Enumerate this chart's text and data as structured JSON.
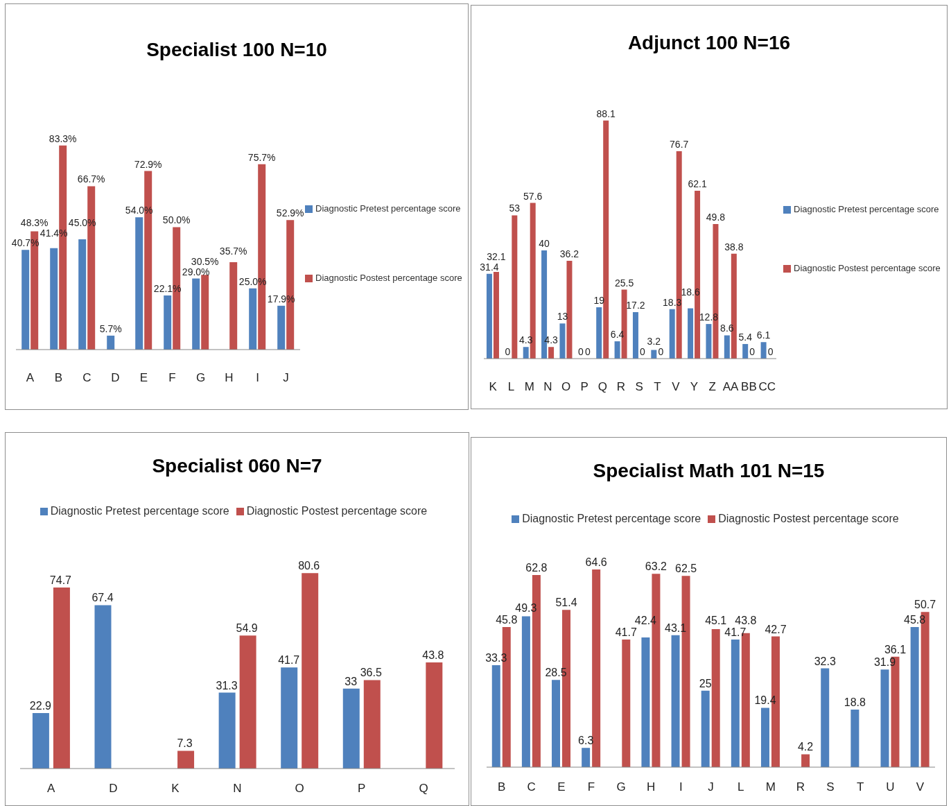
{
  "chart_data": [
    {
      "type": "bar",
      "title": "Specialist 100 N=10",
      "categories": [
        "A",
        "B",
        "C",
        "D",
        "E",
        "F",
        "G",
        "H",
        "I",
        "J"
      ],
      "series": [
        {
          "name": "Diagnostic Pretest percentage score",
          "color": "#4f81bd",
          "values": [
            40.7,
            41.4,
            45,
            5.7,
            54,
            22.1,
            29,
            null,
            25,
            17.9
          ],
          "value_labels": [
            "40.7%",
            "41.4%",
            "45.0%",
            "5.7%",
            "54.0%",
            "22.1%",
            "29.0%",
            null,
            "25.0%",
            "17.9%"
          ]
        },
        {
          "name": "Diagnostic Postest percentage score",
          "color": "#c0504d",
          "values": [
            48.3,
            83.3,
            66.7,
            null,
            72.9,
            50,
            30.5,
            35.7,
            75.7,
            52.9
          ],
          "value_labels": [
            "48.3%",
            "83.3%",
            "66.7%",
            null,
            "72.9%",
            "50.0%",
            "30.5%",
            "35.7%",
            "75.7%",
            "52.9%"
          ]
        }
      ],
      "legend": "right"
    },
    {
      "type": "bar",
      "title": "Adjunct 100 N=16",
      "categories": [
        "K",
        "L",
        "M",
        "N",
        "O",
        "P",
        "Q",
        "R",
        "S",
        "T",
        "V",
        "Y",
        "Z",
        "AA",
        "BB",
        "CC"
      ],
      "series": [
        {
          "name": "Diagnostic Pretest percentage score",
          "color": "#4f81bd",
          "values": [
            31.4,
            0,
            4.3,
            40,
            13,
            0,
            19,
            6.4,
            17.2,
            3.2,
            18.3,
            18.6,
            12.8,
            8.6,
            5.4,
            6.1
          ]
        },
        {
          "name": "Diagnostic Postest percentage score",
          "color": "#c0504d",
          "values": [
            32.1,
            53,
            57.6,
            4.3,
            36.2,
            0,
            88.1,
            25.5,
            0,
            0,
            76.7,
            62.1,
            49.8,
            38.8,
            0,
            0
          ]
        }
      ],
      "data_labels": true,
      "legend": "right"
    },
    {
      "type": "bar",
      "title": "Specialist 060 N=7",
      "categories": [
        "A",
        "D",
        "K",
        "N",
        "O",
        "P",
        "Q"
      ],
      "series": [
        {
          "name": "Diagnostic Pretest percentage score",
          "color": "#4f81bd",
          "values": [
            22.9,
            67.4,
            null,
            31.3,
            41.7,
            33,
            null
          ]
        },
        {
          "name": "Diagnostic Postest percentage score",
          "color": "#c0504d",
          "values": [
            74.7,
            null,
            7.3,
            54.9,
            80.6,
            36.5,
            43.8
          ]
        }
      ],
      "data_labels": true,
      "legend": "top"
    },
    {
      "type": "bar",
      "title": "Specialist Math 101 N=15",
      "categories": [
        "B",
        "C",
        "E",
        "F",
        "G",
        "H",
        "I",
        "J",
        "L",
        "M",
        "R",
        "S",
        "T",
        "U",
        "V"
      ],
      "series": [
        {
          "name": "Diagnostic Pretest percentage score",
          "color": "#4f81bd",
          "values": [
            33.3,
            49.3,
            28.5,
            6.3,
            null,
            42.4,
            43.1,
            25,
            41.7,
            19.4,
            null,
            32.3,
            18.8,
            31.9,
            45.8
          ]
        },
        {
          "name": "Diagnostic Postest percentage score",
          "color": "#c0504d",
          "values": [
            45.8,
            62.8,
            51.4,
            64.6,
            41.7,
            63.2,
            62.5,
            45.1,
            43.8,
            42.7,
            4.2,
            null,
            null,
            36.1,
            50.7
          ]
        }
      ],
      "data_labels": true,
      "legend": "top"
    }
  ]
}
